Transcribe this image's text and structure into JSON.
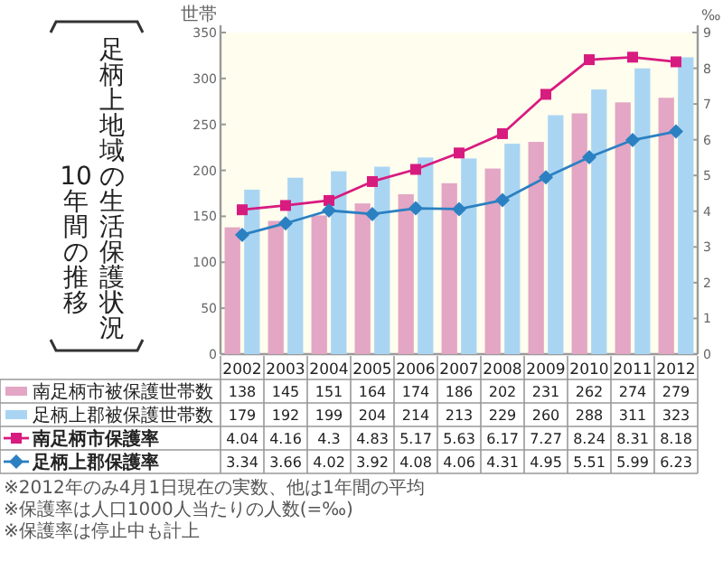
{
  "chart_data": {
    "type": "bar",
    "title": "足柄上地域の生活保護状況",
    "subtitle": "10年間の推移",
    "categories": [
      "2002",
      "2003",
      "2004",
      "2005",
      "2006",
      "2007",
      "2008",
      "2009",
      "2010",
      "2011",
      "2012"
    ],
    "series": [
      {
        "name": "南足柄市被保護世帯数",
        "color": "#e3a6c4",
        "values": [
          138,
          145,
          151,
          164,
          174,
          186,
          202,
          231,
          262,
          274,
          279
        ]
      },
      {
        "name": "足柄上郡被保護世帯数",
        "color": "#a9d5f3",
        "values": [
          179,
          192,
          199,
          204,
          214,
          213,
          229,
          260,
          288,
          311,
          323
        ]
      },
      {
        "name": "南足柄市保護率",
        "type": "line",
        "axis": "y2",
        "marker": "square",
        "color": "#d81b7f",
        "values": [
          4.04,
          4.16,
          4.3,
          4.83,
          5.17,
          5.63,
          6.17,
          7.27,
          8.24,
          8.31,
          8.18
        ]
      },
      {
        "name": "足柄上郡保護率",
        "type": "line",
        "axis": "y2",
        "marker": "diamond",
        "color": "#2b80c2",
        "values": [
          3.34,
          3.66,
          4.02,
          3.92,
          4.08,
          4.06,
          4.31,
          4.95,
          5.51,
          5.99,
          6.23
        ]
      }
    ],
    "ylabel": "世帯",
    "y2label": "‰",
    "ylim": [
      0,
      350
    ],
    "yticks": [
      0,
      50,
      100,
      150,
      200,
      250,
      300,
      350
    ],
    "y2lim": [
      0,
      9
    ],
    "y2ticks": [
      0,
      1,
      2,
      3,
      4,
      5,
      6,
      7,
      8,
      9
    ],
    "grid": false,
    "legend": "bottom",
    "data_labels": true,
    "annotations": [
      "※2012年のみ4月1日現在の実数、他は1年間の平均",
      "※保護率は人口1000人当たりの人数(=‰)",
      "※保護率は停止中も計上"
    ]
  }
}
